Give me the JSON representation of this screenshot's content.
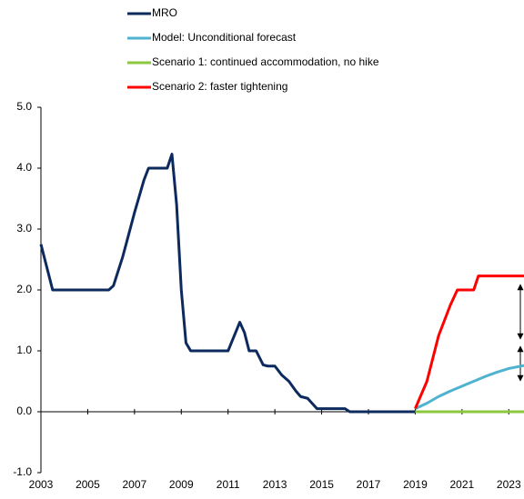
{
  "chart_data": {
    "type": "line",
    "xlim": [
      2003,
      2023.65
    ],
    "xticks": [
      2003,
      2005,
      2007,
      2009,
      2011,
      2013,
      2015,
      2017,
      2019,
      2021,
      2023
    ],
    "ylim": [
      -1,
      5
    ],
    "yticks": [
      {
        "value": -1,
        "label": "-1.0"
      },
      {
        "value": 0,
        "label": "0.0"
      },
      {
        "value": 1,
        "label": "1.0"
      },
      {
        "value": 2,
        "label": "2.0"
      },
      {
        "value": 3,
        "label": "3.0"
      },
      {
        "value": 4,
        "label": "4.0"
      },
      {
        "value": 5,
        "label": "5.0"
      }
    ],
    "series": [
      {
        "name": "MRO",
        "color": "#0d2a5e",
        "x": [
          2003.0,
          2003.5,
          2005.9,
          2006.1,
          2006.5,
          2007.0,
          2007.4,
          2007.6,
          2008.4,
          2008.6,
          2008.8,
          2009.0,
          2009.2,
          2009.4,
          2011.0,
          2011.5,
          2011.7,
          2011.9,
          2012.2,
          2012.5,
          2012.7,
          2013.0,
          2013.3,
          2013.6,
          2013.9,
          2014.1,
          2014.4,
          2014.8,
          2016.0,
          2016.2,
          2019.0
        ],
        "values": [
          2.75,
          2.0,
          2.0,
          2.07,
          2.55,
          3.27,
          3.8,
          4.0,
          4.0,
          4.23,
          3.4,
          2.0,
          1.13,
          1.0,
          1.0,
          1.47,
          1.3,
          1.0,
          1.0,
          0.77,
          0.75,
          0.75,
          0.6,
          0.5,
          0.34,
          0.25,
          0.22,
          0.05,
          0.05,
          0.0,
          0.0
        ]
      },
      {
        "name": "Model: Unconditional forecast",
        "color": "#4fb3cf",
        "x": [
          2019.0,
          2019.5,
          2020.0,
          2020.5,
          2021.0,
          2021.5,
          2022.0,
          2022.5,
          2023.0,
          2023.65
        ],
        "values": [
          0.05,
          0.14,
          0.25,
          0.34,
          0.42,
          0.5,
          0.58,
          0.65,
          0.71,
          0.76
        ]
      },
      {
        "name": "Scenario 1: continued accommodation, no hike",
        "color": "#8dc63f",
        "x": [
          2019.0,
          2023.65
        ],
        "values": [
          0.0,
          0.0
        ]
      },
      {
        "name": "Scenario 2: faster tightening",
        "color": "#ff0000",
        "x": [
          2019.0,
          2019.5,
          2020.0,
          2020.5,
          2020.8,
          2021.5,
          2021.7,
          2023.65
        ],
        "values": [
          0.05,
          0.5,
          1.25,
          1.75,
          2.0,
          2.0,
          2.23,
          2.23
        ]
      }
    ]
  }
}
